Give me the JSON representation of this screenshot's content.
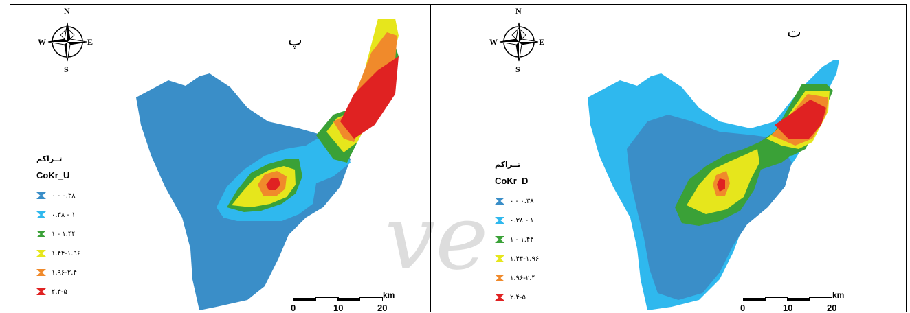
{
  "compass": {
    "n": "N",
    "s": "S",
    "e": "E",
    "w": "W"
  },
  "panels": [
    {
      "letter": "پ",
      "legend_title": "تــراکم",
      "variable": "CoKr_U"
    },
    {
      "letter": "ت",
      "legend_title": "تــراکم",
      "variable": "CoKr_D"
    }
  ],
  "legend_items": [
    {
      "label": "۰ - ۰.۳۸",
      "color": "#3a8ec8"
    },
    {
      "label": "۰.۳۸ - ۱",
      "color": "#2fb8ee"
    },
    {
      "label": "۱ - ۱.۴۴",
      "color": "#3aa137"
    },
    {
      "label": "۱.۴۴-۱.۹۶",
      "color": "#e6e61c"
    },
    {
      "label": "۱.۹۶-۲.۴",
      "color": "#f08a2b"
    },
    {
      "label": "۲.۴-۵",
      "color": "#e02222"
    }
  ],
  "scale": {
    "ticks": [
      "0",
      "10",
      "20"
    ],
    "unit": "km"
  },
  "watermark": "ve"
}
